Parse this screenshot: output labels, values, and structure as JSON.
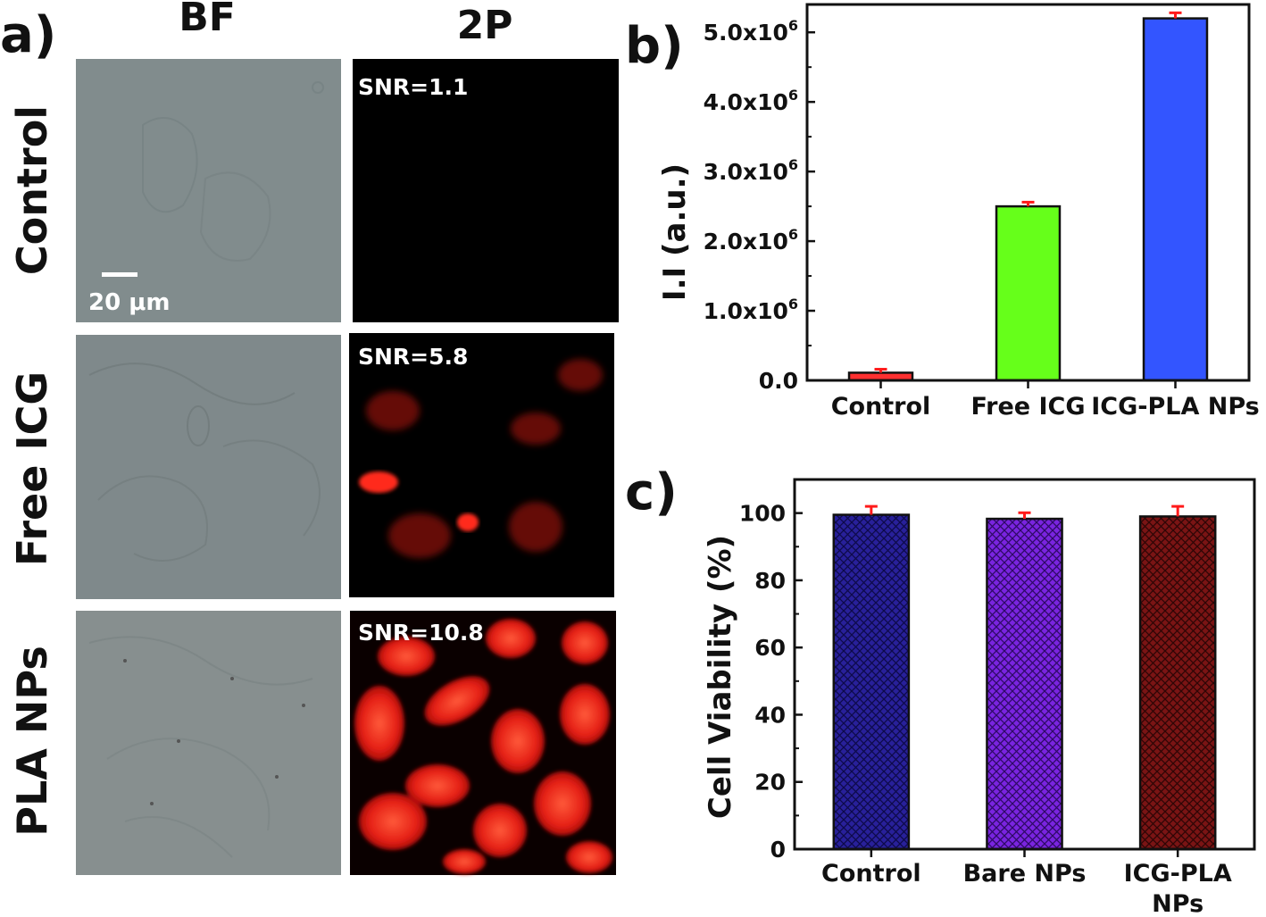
{
  "panel_a": {
    "letter": "a)",
    "columns": [
      "BF",
      "2P"
    ],
    "rows": [
      "Control",
      "Free ICG",
      "PLA NPs"
    ],
    "snr": [
      "SNR=1.1",
      "SNR=5.8",
      "SNR=10.8"
    ],
    "scale_bar": "20 μm"
  },
  "colors": {
    "bf_background": "#7f8a8b",
    "fluorescence": "#ff2a1a",
    "error_bar": "#ff1a1a",
    "b_bars": [
      "#ff3030",
      "#66ff1a",
      "#3355ff"
    ],
    "c_bars": [
      "#28209a",
      "#7a24e0",
      "#7a1414"
    ]
  },
  "chart_data": [
    {
      "panel": "b)",
      "type": "bar",
      "categories": [
        "Control",
        "Free ICG",
        "ICG-PLA NPs"
      ],
      "values": [
        110000,
        2500000,
        5200000
      ],
      "errors": [
        50000,
        60000,
        80000
      ],
      "ylabel": "I.I (a.u.)",
      "ylim": [
        0,
        5400000
      ],
      "yticks": [
        {
          "value": 0,
          "label": "0.0",
          "exp": ""
        },
        {
          "value": 1000000,
          "label": "1.0x10",
          "exp": "6"
        },
        {
          "value": 2000000,
          "label": "2.0x10",
          "exp": "6"
        },
        {
          "value": 3000000,
          "label": "3.0x10",
          "exp": "6"
        },
        {
          "value": 4000000,
          "label": "4.0x10",
          "exp": "6"
        },
        {
          "value": 5000000,
          "label": "5.0x10",
          "exp": "6"
        }
      ],
      "grid": false
    },
    {
      "panel": "c)",
      "type": "bar",
      "categories": [
        "Control",
        "Bare NPs",
        "ICG-PLA NPs"
      ],
      "category_lines": [
        [
          "Control"
        ],
        [
          "Bare NPs"
        ],
        [
          "ICG-PLA",
          "NPs"
        ]
      ],
      "values": [
        99.5,
        98.3,
        99.0
      ],
      "errors": [
        2.5,
        1.8,
        3.0
      ],
      "ylabel": "Cell Viability (%)",
      "ylim": [
        0,
        110
      ],
      "yticks": [
        {
          "value": 0,
          "label": "0",
          "exp": ""
        },
        {
          "value": 20,
          "label": "20",
          "exp": ""
        },
        {
          "value": 40,
          "label": "40",
          "exp": ""
        },
        {
          "value": 60,
          "label": "60",
          "exp": ""
        },
        {
          "value": 80,
          "label": "80",
          "exp": ""
        },
        {
          "value": 100,
          "label": "100",
          "exp": ""
        }
      ],
      "hatch": "crosshatch",
      "grid": false
    }
  ]
}
